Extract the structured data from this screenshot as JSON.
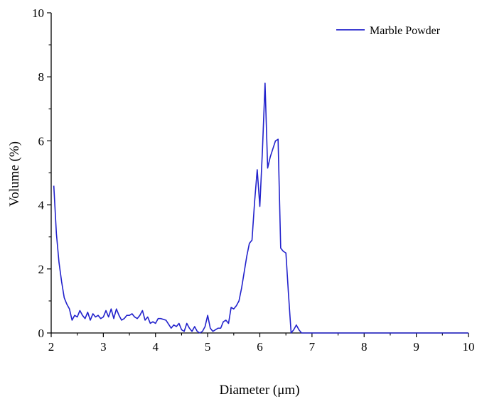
{
  "chart_data": {
    "type": "line",
    "xlabel": "Diameter (μm)",
    "ylabel": "Volume (%)",
    "xlim": [
      2,
      10
    ],
    "ylim": [
      0,
      10
    ],
    "xticks": [
      2,
      3,
      4,
      5,
      6,
      7,
      8,
      9,
      10
    ],
    "yticks": [
      0,
      2,
      4,
      6,
      8,
      10
    ],
    "grid": false,
    "legend_position": "top-right",
    "line_color": "#2222cc",
    "series": [
      {
        "name": "Marble Powder",
        "x": [
          2.05,
          2.1,
          2.15,
          2.2,
          2.25,
          2.3,
          2.35,
          2.4,
          2.45,
          2.5,
          2.55,
          2.6,
          2.65,
          2.7,
          2.75,
          2.8,
          2.85,
          2.9,
          2.95,
          3.0,
          3.05,
          3.1,
          3.15,
          3.2,
          3.25,
          3.3,
          3.35,
          3.4,
          3.45,
          3.5,
          3.55,
          3.6,
          3.65,
          3.7,
          3.75,
          3.8,
          3.85,
          3.9,
          3.95,
          4.0,
          4.05,
          4.1,
          4.2,
          4.3,
          4.35,
          4.4,
          4.45,
          4.5,
          4.55,
          4.6,
          4.65,
          4.7,
          4.75,
          4.8,
          4.85,
          4.9,
          4.95,
          5.0,
          5.05,
          5.1,
          5.15,
          5.2,
          5.25,
          5.3,
          5.35,
          5.4,
          5.45,
          5.5,
          5.55,
          5.6,
          5.65,
          5.7,
          5.75,
          5.8,
          5.85,
          5.9,
          5.95,
          6.0,
          6.05,
          6.1,
          6.15,
          6.2,
          6.25,
          6.3,
          6.35,
          6.4,
          6.45,
          6.5,
          6.55,
          6.6,
          6.65,
          6.7,
          6.75,
          6.8,
          6.85,
          6.9,
          7.0,
          8.0,
          9.0,
          10.0
        ],
        "y": [
          4.6,
          3.1,
          2.2,
          1.6,
          1.1,
          0.9,
          0.75,
          0.4,
          0.55,
          0.5,
          0.7,
          0.55,
          0.45,
          0.65,
          0.4,
          0.6,
          0.5,
          0.55,
          0.45,
          0.5,
          0.7,
          0.5,
          0.75,
          0.45,
          0.75,
          0.55,
          0.4,
          0.45,
          0.55,
          0.55,
          0.6,
          0.5,
          0.45,
          0.55,
          0.7,
          0.4,
          0.5,
          0.3,
          0.35,
          0.3,
          0.45,
          0.45,
          0.4,
          0.15,
          0.25,
          0.2,
          0.3,
          0.1,
          0.05,
          0.3,
          0.15,
          0.05,
          0.2,
          0.05,
          0.0,
          0.05,
          0.2,
          0.55,
          0.15,
          0.05,
          0.1,
          0.15,
          0.15,
          0.35,
          0.4,
          0.3,
          0.8,
          0.75,
          0.85,
          1.0,
          1.4,
          1.9,
          2.4,
          2.8,
          2.9,
          4.1,
          5.1,
          3.95,
          5.7,
          7.8,
          5.15,
          5.5,
          5.75,
          6.0,
          6.05,
          2.65,
          2.55,
          2.5,
          1.2,
          0.0,
          0.1,
          0.25,
          0.1,
          0.0,
          0.0,
          0.0,
          0.0,
          0.0,
          0.0,
          0.0
        ]
      }
    ]
  }
}
